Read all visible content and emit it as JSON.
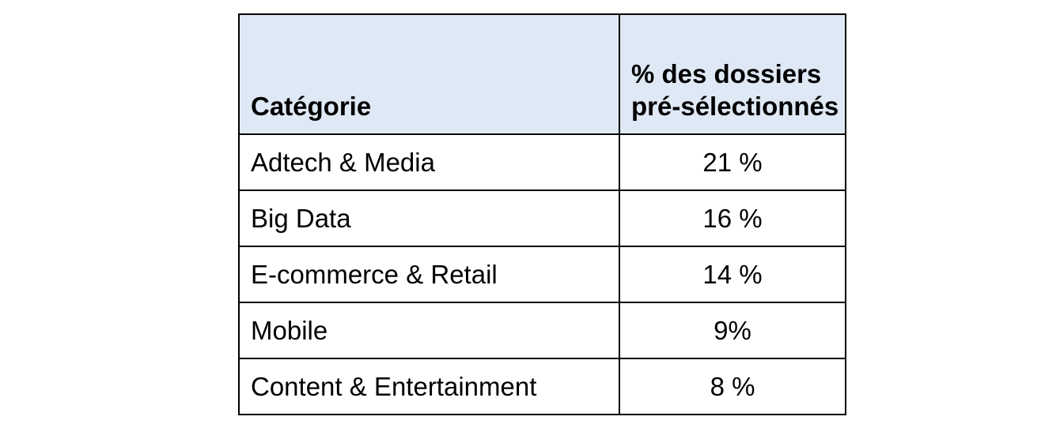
{
  "table": {
    "header": {
      "category": "Catégorie",
      "percent": "% des dossiers pré-sélectionnés"
    },
    "rows": [
      {
        "category": "Adtech & Media",
        "percent": "21 %"
      },
      {
        "category": "Big Data",
        "percent": "16 %"
      },
      {
        "category": "E-commerce & Retail",
        "percent": "14 %"
      },
      {
        "category": "Mobile",
        "percent": "9%"
      },
      {
        "category": "Content & Entertainment",
        "percent": "8 %"
      }
    ]
  },
  "colors": {
    "header_background": "#dfe9f5",
    "border": "#000000",
    "text": "#000000"
  }
}
